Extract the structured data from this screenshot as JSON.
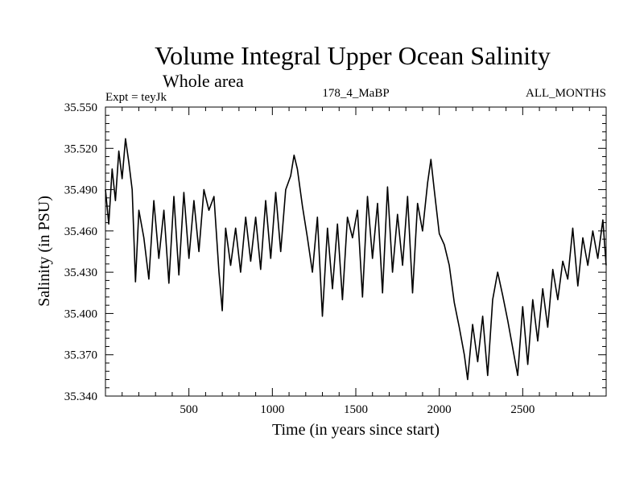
{
  "chart_data": {
    "type": "line",
    "title": "Volume Integral Upper Ocean Salinity",
    "subtitle": "Whole area",
    "experiment_label": "Expt = teyJk",
    "center_label": "178_4_MaBP",
    "right_label": "ALL_MONTHS",
    "xlabel": "Time (in years since start)",
    "ylabel": "Salinity (in PSU)",
    "xlim": [
      0,
      3000
    ],
    "ylim": [
      35.34,
      35.55
    ],
    "x_ticks": [
      500,
      1000,
      1500,
      2000,
      2500
    ],
    "y_ticks": [
      "35.340",
      "35.370",
      "35.400",
      "35.430",
      "35.460",
      "35.490",
      "35.520",
      "35.550"
    ],
    "grid": false,
    "series": [
      {
        "name": "salinity",
        "x": [
          0,
          20,
          40,
          60,
          80,
          100,
          120,
          140,
          160,
          180,
          200,
          230,
          260,
          290,
          320,
          350,
          380,
          410,
          440,
          470,
          500,
          530,
          560,
          590,
          620,
          650,
          680,
          700,
          720,
          750,
          780,
          810,
          840,
          870,
          900,
          930,
          960,
          990,
          1020,
          1050,
          1080,
          1110,
          1130,
          1150,
          1180,
          1210,
          1240,
          1270,
          1300,
          1330,
          1360,
          1390,
          1420,
          1450,
          1480,
          1510,
          1540,
          1570,
          1600,
          1630,
          1660,
          1690,
          1720,
          1750,
          1780,
          1810,
          1840,
          1870,
          1900,
          1930,
          1950,
          1970,
          2000,
          2030,
          2060,
          2090,
          2120,
          2150,
          2170,
          2200,
          2230,
          2260,
          2290,
          2320,
          2350,
          2380,
          2410,
          2440,
          2470,
          2500,
          2530,
          2560,
          2590,
          2620,
          2650,
          2680,
          2710,
          2740,
          2770,
          2800,
          2830,
          2860,
          2890,
          2920,
          2950,
          2980,
          3000
        ],
        "values": [
          35.49,
          35.465,
          35.505,
          35.482,
          35.518,
          35.498,
          35.527,
          35.51,
          35.49,
          35.423,
          35.475,
          35.455,
          35.425,
          35.482,
          35.44,
          35.475,
          35.422,
          35.485,
          35.428,
          35.488,
          35.44,
          35.482,
          35.445,
          35.49,
          35.475,
          35.485,
          35.43,
          35.402,
          35.462,
          35.435,
          35.462,
          35.43,
          35.47,
          35.438,
          35.47,
          35.432,
          35.482,
          35.44,
          35.488,
          35.445,
          35.49,
          35.5,
          35.515,
          35.505,
          35.478,
          35.455,
          35.43,
          35.47,
          35.398,
          35.462,
          35.418,
          35.465,
          35.41,
          35.47,
          35.455,
          35.475,
          35.412,
          35.485,
          35.44,
          35.48,
          35.415,
          35.492,
          35.43,
          35.472,
          35.435,
          35.485,
          35.415,
          35.48,
          35.46,
          35.495,
          35.512,
          35.49,
          35.458,
          35.45,
          35.435,
          35.408,
          35.39,
          35.37,
          35.352,
          35.392,
          35.365,
          35.398,
          35.355,
          35.41,
          35.43,
          35.413,
          35.395,
          35.375,
          35.355,
          35.405,
          35.363,
          35.41,
          35.38,
          35.418,
          35.39,
          35.432,
          35.41,
          35.438,
          35.425,
          35.462,
          35.42,
          35.455,
          35.435,
          35.46,
          35.44,
          35.468,
          35.435
        ]
      }
    ]
  }
}
